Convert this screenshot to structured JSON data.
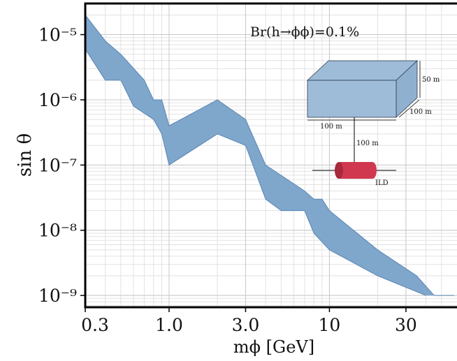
{
  "chart_data": {
    "type": "band",
    "xlabel": "mϕ [GeV]",
    "ylabel": "sin θ",
    "annotations": [
      "Br(h→ϕϕ)=0.1%",
      "50 m",
      "100 m",
      "100 m",
      "100 m",
      "ILD"
    ],
    "log_x": true,
    "log_y": true,
    "grid": true,
    "minor_grid": true,
    "color": "#7fa6cb",
    "edge_color": "#5a86b4",
    "xlim": [
      0.3,
      60
    ],
    "ylim": [
      6.6e-10,
      3e-05
    ],
    "xticks": [
      0.3,
      {
        "value": 1,
        "label": "1.0"
      },
      {
        "value": 3,
        "label": "3.0"
      },
      10,
      30
    ],
    "yticks": [
      {
        "value": 1e-05,
        "label": "10⁻⁵"
      },
      {
        "value": 1e-06,
        "label": "10⁻⁶"
      },
      {
        "value": 1e-07,
        "label": "10⁻⁷"
      },
      {
        "value": 1e-08,
        "label": "10⁻⁸"
      },
      {
        "value": 1e-09,
        "label": "10⁻⁹"
      }
    ],
    "series": [
      {
        "x": [
          0.3,
          0.4,
          0.5,
          0.7,
          0.8,
          0.9,
          1.0,
          2.0,
          3.0,
          4.0,
          7,
          8,
          9,
          10,
          20,
          35,
          45,
          60
        ],
        "values": [
          2e-05,
          8e-06,
          5e-06,
          2e-06,
          1e-06,
          1e-06,
          4e-07,
          1e-06,
          5e-07,
          1e-07,
          4e-08,
          3e-08,
          3e-08,
          2e-08,
          5e-09,
          2e-09,
          1e-09,
          1e-09
        ]
      },
      {
        "x": [
          0.3,
          0.4,
          0.5,
          0.6,
          0.8,
          0.9,
          1.0,
          2.0,
          3.0,
          4.0,
          5,
          7,
          8,
          10,
          20,
          40
        ],
        "values": [
          6e-06,
          2e-06,
          2e-06,
          8e-07,
          5e-07,
          3e-07,
          1e-07,
          3e-07,
          2e-07,
          3e-08,
          2e-08,
          2e-08,
          9e-09,
          5e-09,
          2e-09,
          1e-09
        ]
      }
    ]
  }
}
